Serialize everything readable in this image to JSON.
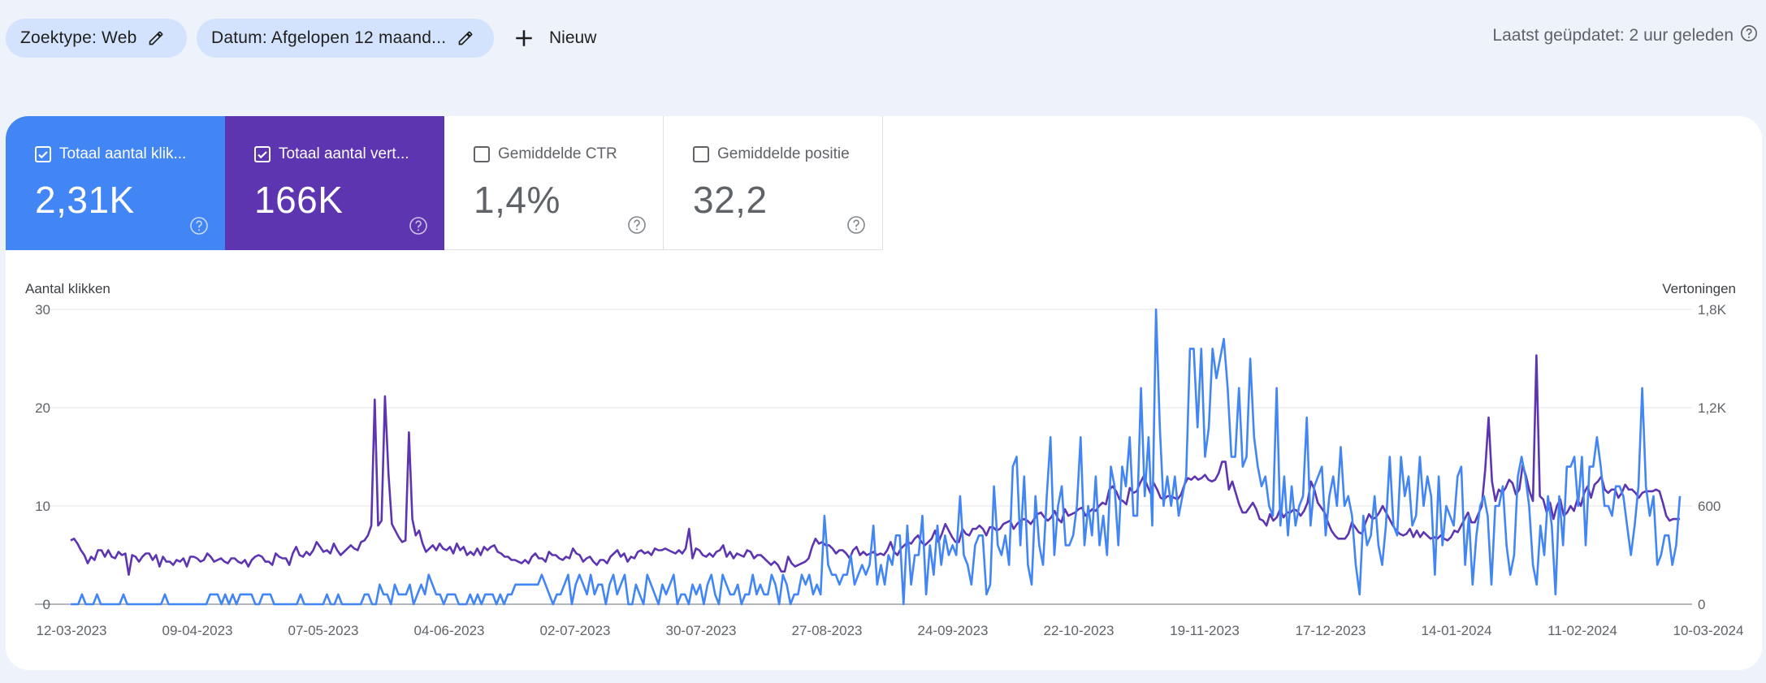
{
  "filters": {
    "search_type": "Zoektype: Web",
    "date": "Datum: Afgelopen 12 maand...",
    "new_label": "Nieuw",
    "last_updated": "Laatst geüpdatet: 2 uur geleden"
  },
  "metrics": [
    {
      "label": "Totaal aantal klik...",
      "value": "2,31K",
      "checked": true,
      "color": "#4285f4"
    },
    {
      "label": "Totaal aantal vert...",
      "value": "166K",
      "checked": true,
      "color": "#5e35b1"
    },
    {
      "label": "Gemiddelde CTR",
      "value": "1,4%",
      "checked": false
    },
    {
      "label": "Gemiddelde positie",
      "value": "32,2",
      "checked": false
    }
  ],
  "chart_data": {
    "type": "line",
    "left_axis_label": "Aantal klikken",
    "right_axis_label": "Vertoningen",
    "left_ticks": [
      "0",
      "10",
      "20",
      "30"
    ],
    "right_ticks": [
      "0",
      "600",
      "1,2K",
      "1,8K"
    ],
    "ylim_left": [
      0,
      30
    ],
    "ylim_right": [
      0,
      1800
    ],
    "x_ticks": [
      "12-03-2023",
      "09-04-2023",
      "07-05-2023",
      "04-06-2023",
      "02-07-2023",
      "30-07-2023",
      "27-08-2023",
      "24-09-2023",
      "22-10-2023",
      "19-11-2023",
      "17-12-2023",
      "14-01-2024",
      "11-02-2024",
      "10-03-2024"
    ],
    "series": [
      {
        "name": "Totaal aantal klikken",
        "axis": "left",
        "color": "#4285f4",
        "values": [
          0,
          0,
          0,
          1,
          0,
          0,
          0,
          1,
          0,
          0,
          0,
          0,
          0,
          0,
          1,
          0,
          0,
          0,
          0,
          0,
          0,
          0,
          0,
          0,
          0,
          1,
          0,
          0,
          0,
          0,
          0,
          0,
          0,
          0,
          0,
          0,
          0,
          1,
          1,
          1,
          0,
          1,
          0,
          1,
          0,
          1,
          1,
          1,
          1,
          0,
          0,
          1,
          1,
          1,
          0,
          0,
          0,
          0,
          0,
          0,
          0,
          1,
          0,
          0,
          0,
          0,
          0,
          0,
          1,
          0,
          0,
          1,
          0,
          0,
          0,
          0,
          0,
          0,
          1,
          1,
          0,
          0,
          2,
          1,
          1,
          0,
          2,
          1,
          1,
          1,
          2,
          0,
          1,
          2,
          1,
          3,
          2,
          1,
          1,
          0,
          1,
          1,
          1,
          0,
          0,
          0,
          1,
          0,
          1,
          0,
          1,
          1,
          1,
          0,
          1,
          0,
          1,
          1,
          2,
          2,
          2,
          2,
          2,
          2,
          2,
          3,
          2,
          1,
          0,
          1,
          1,
          2,
          3,
          0,
          2,
          3,
          2,
          1,
          3,
          1,
          2,
          2,
          0,
          2,
          3,
          1,
          2,
          3,
          0,
          0,
          2,
          1,
          0,
          3,
          2,
          1,
          0,
          2,
          1,
          2,
          3,
          0,
          1,
          1,
          0,
          2,
          1,
          2,
          0,
          2,
          3,
          1,
          0,
          3,
          2,
          1,
          1,
          2,
          0,
          1,
          1,
          3,
          1,
          2,
          1,
          1,
          3,
          2,
          0,
          3,
          2,
          0,
          1,
          1,
          3,
          2,
          3,
          1,
          2,
          1,
          9,
          4,
          3,
          3,
          2,
          3,
          3,
          5,
          2,
          3,
          4,
          3,
          4,
          8,
          2,
          4,
          2,
          5,
          4,
          7,
          7,
          0,
          8,
          2,
          5,
          5,
          9,
          1,
          6,
          3,
          8,
          4,
          7,
          5,
          6,
          5,
          11,
          5,
          4,
          2,
          6,
          7,
          7,
          1,
          2,
          12,
          6,
          5,
          7,
          4,
          14,
          15,
          6,
          13,
          4,
          2,
          11,
          6,
          4,
          11,
          17,
          5,
          10,
          12,
          6,
          6,
          7,
          10,
          17,
          6,
          10,
          7,
          13,
          6,
          9,
          5,
          14,
          12,
          6,
          14,
          12,
          17,
          9,
          9,
          22,
          11,
          17,
          8,
          30,
          18,
          10,
          13,
          10,
          13,
          9,
          11,
          13,
          26,
          26,
          18,
          26,
          15,
          18,
          26,
          23,
          25,
          27,
          22,
          15,
          15,
          22,
          14,
          15,
          25,
          17,
          14,
          12,
          13,
          10,
          9,
          22,
          8,
          13,
          7,
          12,
          8,
          10,
          11,
          19,
          8,
          12,
          13,
          14,
          7,
          11,
          13,
          10,
          16,
          10,
          11,
          9,
          4,
          1,
          9,
          6,
          7,
          11,
          6,
          4,
          8,
          15,
          8,
          7,
          15,
          11,
          13,
          8,
          9,
          15,
          10,
          13,
          11,
          3,
          13,
          6,
          10,
          9,
          8,
          13,
          14,
          4,
          9,
          2,
          7,
          10,
          11,
          9,
          2,
          10,
          10,
          12,
          6,
          3,
          5,
          13,
          15,
          13,
          10,
          4,
          2,
          8,
          5,
          11,
          8,
          1,
          11,
          6,
          14,
          14,
          15,
          10,
          15,
          6,
          14,
          14,
          17,
          14,
          10,
          10,
          9,
          12,
          12,
          11,
          8,
          5,
          8,
          12,
          22,
          12,
          9,
          11,
          4,
          5,
          7,
          7,
          4,
          6,
          11
        ]
      },
      {
        "name": "Totaal aantal vertoningen",
        "axis": "right",
        "color": "#5e35b1",
        "values": [
          390,
          400,
          370,
          330,
          300,
          250,
          290,
          270,
          330,
          330,
          290,
          330,
          290,
          280,
          320,
          300,
          310,
          180,
          300,
          290,
          260,
          290,
          310,
          310,
          270,
          300,
          230,
          290,
          260,
          260,
          240,
          270,
          260,
          280,
          230,
          290,
          290,
          280,
          260,
          270,
          310,
          290,
          260,
          270,
          280,
          260,
          250,
          280,
          280,
          260,
          250,
          270,
          230,
          270,
          290,
          300,
          290,
          260,
          260,
          240,
          310,
          290,
          280,
          280,
          240,
          310,
          350,
          300,
          290,
          320,
          300,
          330,
          380,
          350,
          320,
          330,
          310,
          370,
          330,
          300,
          320,
          340,
          360,
          340,
          330,
          380,
          390,
          420,
          480,
          1250,
          480,
          510,
          1270,
          800,
          490,
          450,
          410,
          380,
          390,
          1050,
          520,
          420,
          450,
          370,
          320,
          340,
          360,
          330,
          370,
          340,
          330,
          350,
          310,
          370,
          330,
          350,
          300,
          320,
          300,
          340,
          300,
          350,
          330,
          350,
          360,
          320,
          310,
          290,
          290,
          270,
          270,
          260,
          250,
          270,
          250,
          290,
          310,
          280,
          280,
          260,
          320,
          300,
          300,
          280,
          270,
          290,
          280,
          340,
          310,
          300,
          260,
          280,
          290,
          260,
          240,
          270,
          270,
          250,
          290,
          310,
          330,
          290,
          310,
          260,
          290,
          280,
          320,
          330,
          310,
          320,
          300,
          340,
          330,
          330,
          340,
          330,
          320,
          310,
          330,
          310,
          340,
          460,
          280,
          340,
          330,
          300,
          290,
          310,
          290,
          320,
          330,
          360,
          290,
          320,
          280,
          310,
          300,
          290,
          330,
          320,
          280,
          300,
          300,
          280,
          260,
          240,
          260,
          240,
          200,
          200,
          290,
          250,
          230,
          240,
          250,
          260,
          280,
          350,
          400,
          370,
          380,
          360,
          360,
          340,
          310,
          330,
          330,
          310,
          280,
          330,
          350,
          300,
          320,
          300,
          310,
          320,
          300,
          310,
          300,
          330,
          380,
          320,
          300,
          340,
          360,
          380,
          370,
          400,
          420,
          380,
          360,
          380,
          400,
          450,
          380,
          430,
          490,
          450,
          410,
          380,
          380,
          460,
          430,
          420,
          460,
          460,
          480,
          460,
          420,
          470,
          470,
          450,
          460,
          490,
          500,
          510,
          460,
          490,
          510,
          520,
          510,
          490,
          520,
          550,
          560,
          530,
          510,
          530,
          570,
          520,
          500,
          580,
          540,
          550,
          560,
          580,
          590,
          540,
          560,
          580,
          570,
          600,
          620,
          610,
          700,
          720,
          690,
          640,
          630,
          610,
          710,
          680,
          690,
          740,
          780,
          730,
          680,
          740,
          700,
          650,
          640,
          660,
          660,
          650,
          640,
          670,
          730,
          770,
          760,
          780,
          760,
          770,
          790,
          760,
          750,
          760,
          800,
          870,
          870,
          700,
          750,
          680,
          610,
          560,
          560,
          590,
          620,
          580,
          520,
          510,
          480,
          550,
          510,
          530,
          580,
          530,
          560,
          560,
          580,
          570,
          540,
          570,
          620,
          750,
          700,
          620,
          590,
          560,
          500,
          450,
          420,
          400,
          400,
          400,
          430,
          500,
          470,
          440,
          430,
          500,
          550,
          520,
          530,
          560,
          600,
          560,
          520,
          480,
          450,
          430,
          420,
          430,
          460,
          410,
          450,
          410,
          440,
          420,
          400,
          410,
          400,
          420,
          400,
          390,
          410,
          450,
          440,
          480,
          520,
          560,
          500,
          500,
          550,
          600,
          820,
          1140,
          750,
          630,
          700,
          680,
          710,
          760,
          740,
          670,
          700,
          850,
          780,
          690,
          630,
          1520,
          660,
          640,
          560,
          620,
          520,
          600,
          640,
          540,
          560,
          600,
          570,
          640,
          600,
          680,
          720,
          650,
          730,
          750,
          780,
          700,
          680,
          700,
          700,
          650,
          680,
          730,
          700,
          700,
          680,
          650,
          680,
          690,
          690,
          690,
          700,
          690,
          620,
          540,
          510,
          520,
          520,
          520
        ]
      }
    ]
  }
}
